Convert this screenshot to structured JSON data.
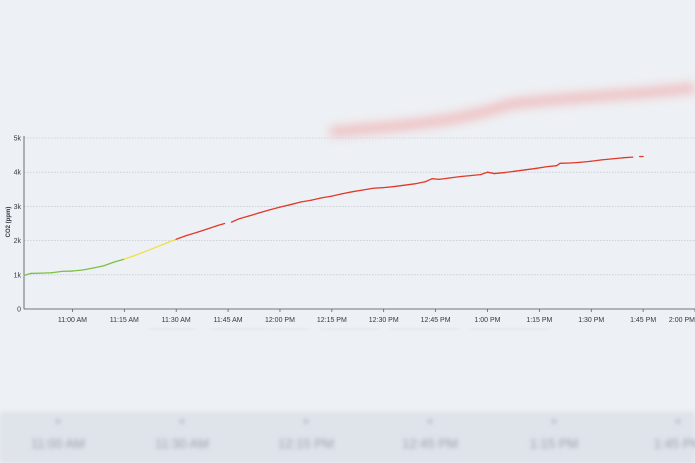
{
  "chart_data": {
    "type": "line",
    "title": "",
    "xlabel": "",
    "ylabel": "CO2 (ppm)",
    "x_start": "10:46 AM",
    "x_end": "2:00 PM",
    "x_ticks": [
      "11:00 AM",
      "11:15 AM",
      "11:30 AM",
      "11:45 AM",
      "12:00 PM",
      "12:15 PM",
      "12:30 PM",
      "12:45 PM",
      "1:00 PM",
      "1:15 PM",
      "1:30 PM",
      "1:45 PM",
      "2:00 PM"
    ],
    "ylim": [
      0,
      5000
    ],
    "y_ticks": [
      0,
      1000,
      2000,
      3000,
      4000,
      5000
    ],
    "y_tick_labels": [
      "0",
      "1k",
      "2k",
      "3k",
      "4k",
      "5k"
    ],
    "grid": true,
    "thresholds": [
      {
        "max": 1000,
        "color": "#2e9e4a"
      },
      {
        "max": 1500,
        "color": "#7cc242"
      },
      {
        "max": 2000,
        "color": "#f0e040"
      },
      {
        "max": 999999,
        "color": "#e03a2a"
      }
    ],
    "series": [
      {
        "points": [
          [
            "10:46 AM",
            980
          ],
          [
            "10:48 AM",
            1040
          ],
          [
            "10:51 AM",
            1050
          ],
          [
            "10:54 AM",
            1060
          ],
          [
            "10:57 AM",
            1100
          ],
          [
            "11:00 AM",
            1110
          ],
          [
            "11:03 AM",
            1140
          ],
          [
            "11:06 AM",
            1200
          ],
          [
            "11:09 AM",
            1260
          ],
          [
            "11:12 AM",
            1370
          ],
          [
            "11:15 AM",
            1460
          ],
          [
            "11:18 AM",
            1560
          ],
          [
            "11:21 AM",
            1680
          ],
          [
            "11:24 AM",
            1800
          ],
          [
            "11:27 AM",
            1920
          ],
          [
            "11:30 AM",
            2040
          ],
          [
            "11:33 AM",
            2150
          ],
          [
            "11:36 AM",
            2240
          ],
          [
            "11:39 AM",
            2340
          ],
          [
            "11:42 AM",
            2440
          ],
          [
            "11:44 AM",
            2500
          ]
        ]
      },
      {
        "points": [
          [
            "11:46 AM",
            2540
          ],
          [
            "11:48 AM",
            2630
          ],
          [
            "11:51 AM",
            2720
          ],
          [
            "11:54 AM",
            2810
          ],
          [
            "11:57 AM",
            2900
          ],
          [
            "12:00 PM",
            2980
          ],
          [
            "12:03 PM",
            3050
          ],
          [
            "12:06 PM",
            3130
          ],
          [
            "12:09 PM",
            3180
          ],
          [
            "12:12 PM",
            3250
          ],
          [
            "12:15 PM",
            3300
          ],
          [
            "12:18 PM",
            3370
          ],
          [
            "12:21 PM",
            3430
          ],
          [
            "12:24 PM",
            3480
          ],
          [
            "12:27 PM",
            3530
          ],
          [
            "12:30 PM",
            3550
          ],
          [
            "12:33 PM",
            3580
          ],
          [
            "12:36 PM",
            3620
          ],
          [
            "12:39 PM",
            3660
          ],
          [
            "12:42 PM",
            3720
          ],
          [
            "12:44 PM",
            3810
          ],
          [
            "12:46 PM",
            3790
          ],
          [
            "12:49 PM",
            3830
          ],
          [
            "12:52 PM",
            3870
          ],
          [
            "12:55 PM",
            3900
          ],
          [
            "12:58 PM",
            3930
          ],
          [
            "1:00 PM",
            4000
          ],
          [
            "1:02 PM",
            3960
          ],
          [
            "1:05 PM",
            3990
          ],
          [
            "1:08 PM",
            4030
          ],
          [
            "1:11 PM",
            4070
          ],
          [
            "1:14 PM",
            4110
          ],
          [
            "1:17 PM",
            4160
          ],
          [
            "1:20 PM",
            4190
          ],
          [
            "1:21 PM",
            4260
          ],
          [
            "1:24 PM",
            4270
          ],
          [
            "1:27 PM",
            4290
          ],
          [
            "1:30 PM",
            4320
          ],
          [
            "1:33 PM",
            4360
          ],
          [
            "1:36 PM",
            4390
          ],
          [
            "1:39 PM",
            4420
          ],
          [
            "1:42 PM",
            4440
          ]
        ]
      },
      {
        "points": [
          [
            "1:44 PM",
            4460
          ],
          [
            "1:45 PM",
            4460
          ]
        ]
      }
    ]
  },
  "background": {
    "blurred_x_labels": [
      "11:00 AM",
      "11:30 AM",
      "12:15 PM",
      "12:45 PM",
      "1:15 PM",
      "1:45 PM"
    ]
  }
}
